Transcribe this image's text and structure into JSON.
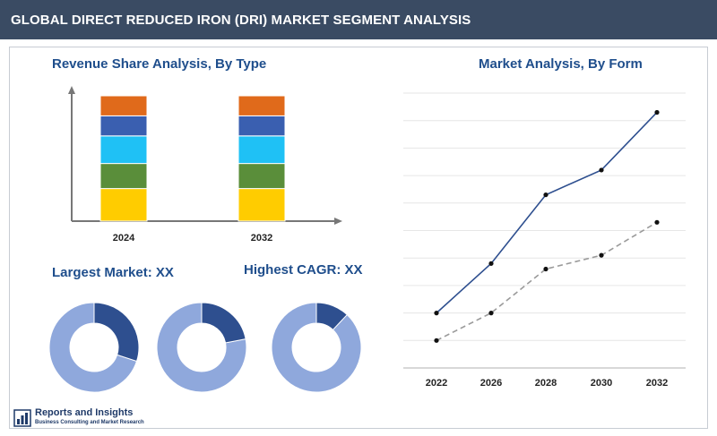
{
  "header": {
    "title": "GLOBAL DIRECT REDUCED IRON (DRI) MARKET SEGMENT ANALYSIS"
  },
  "colors": {
    "header_bg": "#3a4b63",
    "accent_title": "#1f4e8c",
    "stack": [
      "#ffcc00",
      "#5a8e3a",
      "#1fc1f5",
      "#3a5fb0",
      "#e06a1b"
    ],
    "donut_light": "#8fa8dc",
    "donut_dark": "#2e4f8f",
    "line_solid": "#2e4f8f",
    "line_dashed": "#9a9a9a"
  },
  "left_chart": {
    "title": "Revenue Share Analysis, By Type"
  },
  "donuts": {
    "largest_label": "Largest Market: XX",
    "cagr_label": "Highest CAGR: XX"
  },
  "right_chart": {
    "title": "Market Analysis, By Form"
  },
  "logo": {
    "icon": "bar-chart-logo-icon",
    "name": "Reports and Insights",
    "tagline": "Business Consulting and Market Research"
  },
  "chart_data": [
    {
      "type": "bar",
      "stacked": true,
      "title": "Revenue Share Analysis, By Type",
      "categories": [
        "2024",
        "2032"
      ],
      "series": [
        {
          "values": [
            26,
            26
          ]
        },
        {
          "values": [
            20,
            20
          ]
        },
        {
          "values": [
            22,
            22
          ]
        },
        {
          "values": [
            16,
            16
          ]
        },
        {
          "values": [
            16,
            16
          ]
        }
      ],
      "ylim": [
        0,
        100
      ],
      "grid": false
    },
    {
      "type": "pie",
      "donut": true,
      "title": "Largest Market: XX",
      "slices": [
        {
          "value": 70
        },
        {
          "value": 30
        }
      ]
    },
    {
      "type": "pie",
      "donut": true,
      "slices": [
        {
          "value": 78
        },
        {
          "value": 22
        }
      ]
    },
    {
      "type": "pie",
      "donut": true,
      "title": "Highest CAGR: XX",
      "slices": [
        {
          "value": 88
        },
        {
          "value": 12
        }
      ]
    },
    {
      "type": "line",
      "title": "Market Analysis, By Form",
      "x": [
        "2022",
        "2026",
        "2028",
        "2030",
        "2032"
      ],
      "series": [
        {
          "style": "solid",
          "values": [
            2.0,
            3.8,
            6.3,
            7.2,
            9.3
          ]
        },
        {
          "style": "dashed",
          "values": [
            1.0,
            2.0,
            3.6,
            4.1,
            5.3
          ]
        }
      ],
      "ylim": [
        0,
        10
      ],
      "grid": true
    }
  ]
}
